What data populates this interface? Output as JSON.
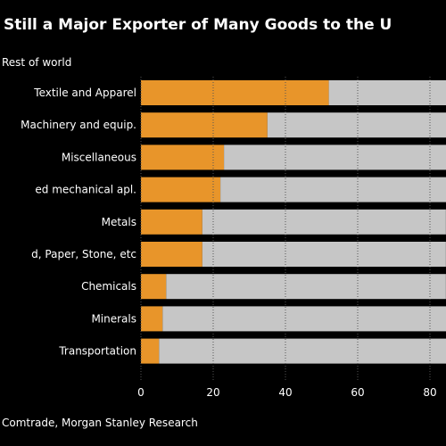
{
  "chart_data": {
    "type": "bar",
    "orientation": "horizontal",
    "stacked": true,
    "title": "Still a Major Exporter of Many Goods to the U",
    "source": "Comtrade, Morgan Stanley Research",
    "legend_visible": "Rest of world",
    "categories": [
      "Textile and Apparel",
      "Machinery and equip.",
      "Miscellaneous",
      "ed mechanical apl.",
      "Metals",
      "d, Paper, Stone, etc",
      "Chemicals",
      "Minerals",
      "Transportation"
    ],
    "series": [
      {
        "name": "",
        "color": "#e8952a",
        "values": [
          52,
          35,
          23,
          22,
          17,
          17,
          7,
          6,
          5
        ]
      },
      {
        "name": "Rest of world",
        "color": "#c6c6c6",
        "values": [
          48,
          65,
          77,
          78,
          83,
          83,
          93,
          94,
          95
        ]
      }
    ],
    "xlim": [
      0,
      100
    ],
    "x_ticks": [
      0,
      20,
      40,
      60,
      80
    ],
    "x_tick_labels": [
      "0",
      "20",
      "40",
      "60",
      "80"
    ],
    "grid": true
  }
}
